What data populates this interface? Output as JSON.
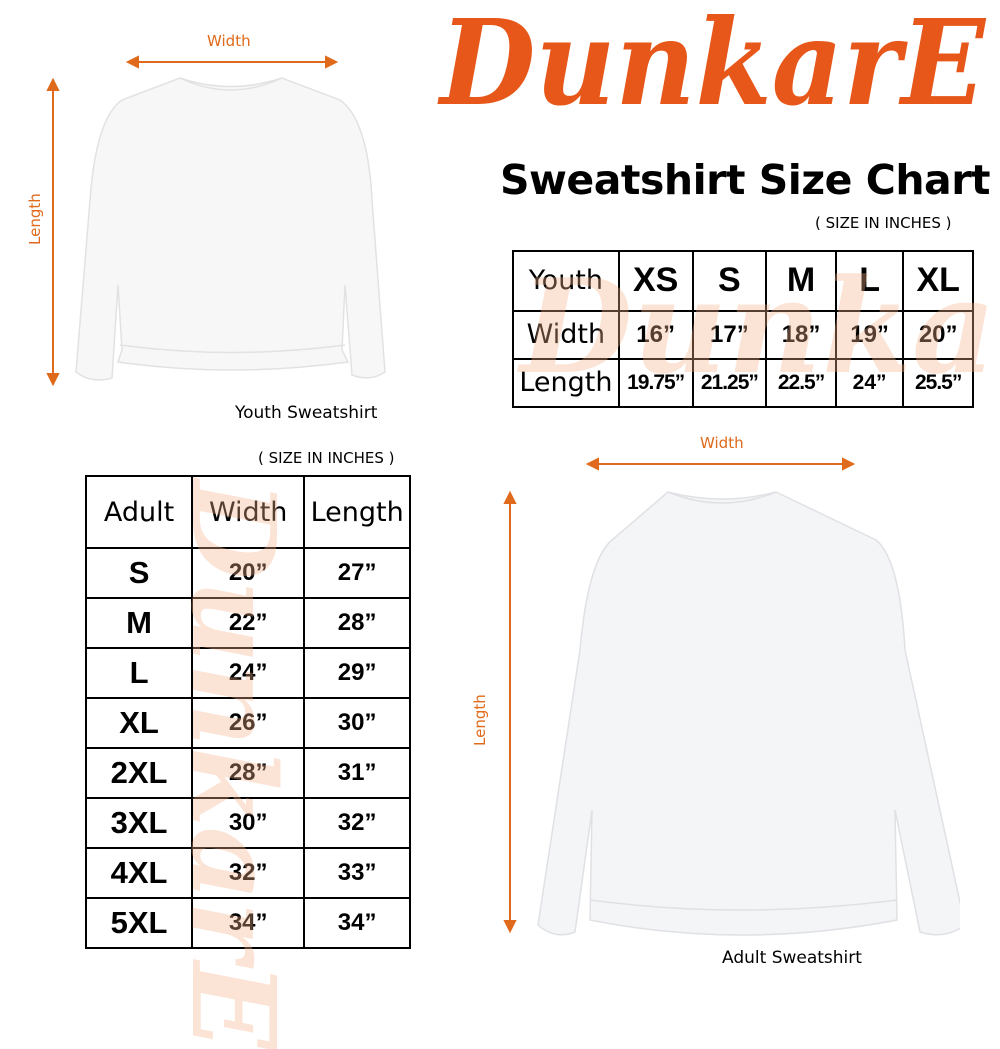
{
  "brand": {
    "logo_text": "DunkarE",
    "color": "#e8571a"
  },
  "title": "Sweatshirt Size Chart",
  "youth": {
    "unit_note": "( SIZE IN INCHES )",
    "header": [
      "Youth",
      "XS",
      "S",
      "M",
      "L",
      "XL"
    ],
    "rows": [
      [
        "Width",
        "16”",
        "17”",
        "18”",
        "19”",
        "20”"
      ],
      [
        "Length",
        "19.75”",
        "21.25”",
        "22.5”",
        "24”",
        "25.5”"
      ]
    ],
    "image": {
      "width_label": "Width",
      "length_label": "Length",
      "caption": "Youth Sweatshirt"
    }
  },
  "adult": {
    "unit_note": "( SIZE IN INCHES )",
    "header": [
      "Adult",
      "Width",
      "Length"
    ],
    "rows": [
      [
        "S",
        "20”",
        "27”"
      ],
      [
        "M",
        "22”",
        "28”"
      ],
      [
        "L",
        "24”",
        "29”"
      ],
      [
        "XL",
        "26”",
        "30”"
      ],
      [
        "2XL",
        "28”",
        "31”"
      ],
      [
        "3XL",
        "30”",
        "32”"
      ],
      [
        "4XL",
        "32”",
        "33”"
      ],
      [
        "5XL",
        "34”",
        "34”"
      ]
    ],
    "image": {
      "width_label": "Width",
      "length_label": "Length",
      "caption": "Adult Sweatshirt"
    }
  },
  "arrow_color": "#e06a1b"
}
